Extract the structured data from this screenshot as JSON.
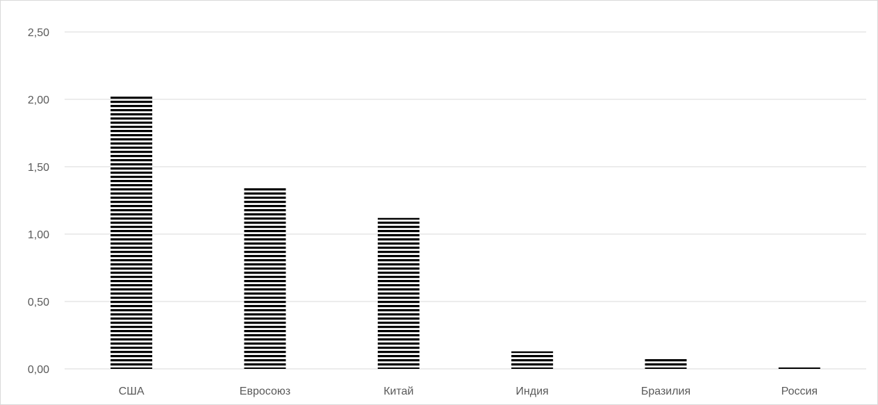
{
  "chart_data": {
    "type": "bar",
    "title": "",
    "xlabel": "",
    "ylabel": "",
    "categories": [
      "США",
      "Евросоюз",
      "Китай",
      "Индия",
      "Бразилия",
      "Россия"
    ],
    "values": [
      2.02,
      1.34,
      1.12,
      0.13,
      0.08,
      0.02
    ],
    "ylim": [
      0,
      2.5
    ],
    "yticks": [
      "0,00",
      "0,50",
      "1,00",
      "1,50",
      "2,00",
      "2,50"
    ],
    "grid": true,
    "legend": "none",
    "bar_fill": "horizontal black stripes",
    "colors": {
      "bar": "#000000",
      "grid": "#d9d9d9",
      "text": "#595959",
      "border": "#d9d9d9"
    }
  }
}
